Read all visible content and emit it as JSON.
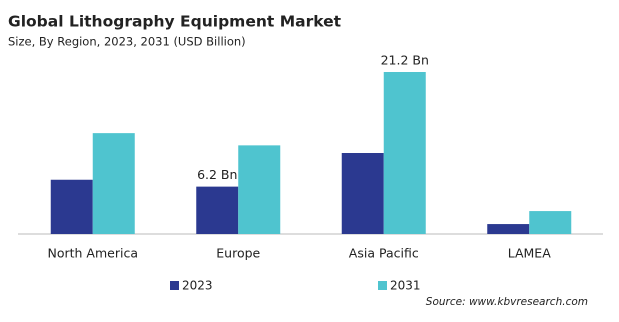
{
  "chart_data": {
    "type": "bar",
    "title": "Global Lithography Equipment Market",
    "subtitle": "Size, By Region, 2023, 2031 (USD Billion)",
    "categories": [
      "North America",
      "Europe",
      "Asia Pacific",
      "LAMEA"
    ],
    "series": [
      {
        "name": "2023",
        "color": "#2b3990",
        "values": [
          7.1,
          6.2,
          10.6,
          1.3
        ],
        "value_labels": [
          null,
          "6.2 Bn",
          null,
          null
        ]
      },
      {
        "name": "2031",
        "color": "#4fc4cf",
        "values": [
          13.2,
          11.6,
          21.2,
          3.0
        ],
        "value_labels": [
          null,
          null,
          "21.2 Bn",
          null
        ]
      }
    ],
    "source": "Source: www.kbvresearch.com"
  }
}
